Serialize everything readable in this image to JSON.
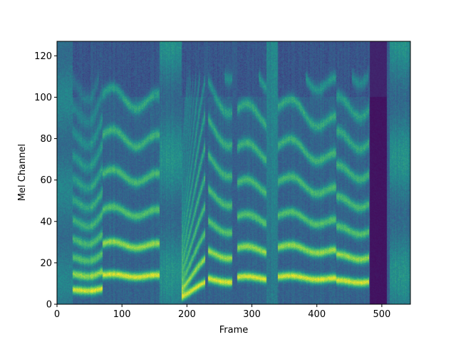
{
  "chart_data": {
    "type": "heatmap",
    "title": "",
    "xlabel": "Frame",
    "ylabel": "Mel Channel",
    "xlim": [
      0,
      544
    ],
    "ylim": [
      0,
      127
    ],
    "x_ticks": [
      "0",
      "100",
      "200",
      "300",
      "400",
      "500"
    ],
    "y_ticks": [
      "0",
      "20",
      "40",
      "60",
      "80",
      "100",
      "120"
    ],
    "grid": false,
    "colormap": "viridis",
    "colormap_stops": [
      "#440154",
      "#3b528b",
      "#21918c",
      "#5ec962",
      "#fde725"
    ],
    "segments": [
      {
        "label": "silence",
        "x0": 0,
        "x1": 24,
        "f0": 0
      },
      {
        "label": "voiced",
        "x0": 24,
        "x1": 70,
        "f0": 6.5,
        "f0_end": 7.5
      },
      {
        "label": "voiced",
        "x0": 70,
        "x1": 158,
        "f0": 14,
        "f0_end": 13.5
      },
      {
        "label": "breath",
        "x0": 158,
        "x1": 192,
        "f0": 0
      },
      {
        "label": "voiced",
        "x0": 192,
        "x1": 228,
        "f0": 4,
        "f0_end": 10
      },
      {
        "label": "voiced",
        "x0": 232,
        "x1": 270,
        "f0": 12,
        "f0_end": 11
      },
      {
        "label": "voiced",
        "x0": 278,
        "x1": 322,
        "f0": 13,
        "f0_end": 12.5
      },
      {
        "label": "noise",
        "x0": 322,
        "x1": 340,
        "f0": 0
      },
      {
        "label": "voiced",
        "x0": 340,
        "x1": 430,
        "f0": 13.5,
        "f0_end": 12
      },
      {
        "label": "voiced",
        "x0": 430,
        "x1": 480,
        "f0": 11,
        "f0_end": 11
      },
      {
        "label": "dark",
        "x0": 482,
        "x1": 508,
        "f0": 0
      },
      {
        "label": "breath",
        "x0": 512,
        "x1": 544,
        "f0": 0
      }
    ]
  }
}
